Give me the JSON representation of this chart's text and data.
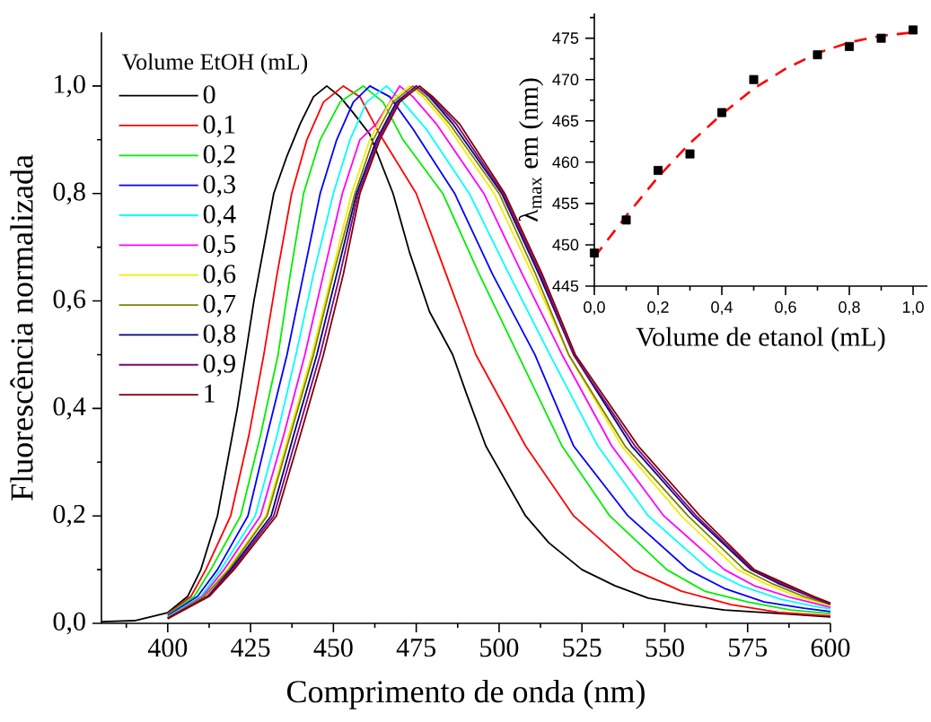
{
  "chart_data": [
    {
      "type": "line",
      "xlabel": "Comprimento de onda (nm)",
      "ylabel": "Fluorescência normalizada",
      "legend_title": "Volume EtOH (mL)",
      "legend": "top left",
      "xlim": [
        380,
        600
      ],
      "ylim": [
        0,
        1.1
      ],
      "xticks": [
        400,
        425,
        450,
        475,
        500,
        525,
        550,
        575,
        600,
        {
          "value": 387.5,
          "label": null
        },
        {
          "value": 412.5,
          "label": null
        },
        {
          "value": 437.5,
          "label": null
        },
        {
          "value": 462.5,
          "label": null
        },
        {
          "value": 487.5,
          "label": null
        },
        {
          "value": 512.5,
          "label": null
        },
        {
          "value": 537.5,
          "label": null
        },
        {
          "value": 562.5,
          "label": null
        },
        {
          "value": 587.5,
          "label": null
        }
      ],
      "yticks": [
        {
          "value": 0,
          "label": "0,0"
        },
        {
          "value": 0.2,
          "label": "0,2"
        },
        {
          "value": 0.4,
          "label": "0,4"
        },
        {
          "value": 0.6,
          "label": "0,6"
        },
        {
          "value": 0.8,
          "label": "0,8"
        },
        {
          "value": 1.0,
          "label": "1,0"
        },
        {
          "value": 0.1,
          "label": null
        },
        {
          "value": 0.3,
          "label": null
        },
        {
          "value": 0.5,
          "label": null
        },
        {
          "value": 0.7,
          "label": null
        },
        {
          "value": 0.9,
          "label": null
        }
      ],
      "series": [
        {
          "name": "0",
          "color": "#000000",
          "x": [
            380,
            390,
            400,
            406,
            410,
            415,
            421,
            426,
            432,
            436,
            440,
            444,
            448,
            452,
            456,
            461,
            468,
            473,
            479,
            486,
            490,
            496,
            508,
            515,
            525,
            535,
            545,
            556,
            568,
            585,
            600
          ],
          "values": [
            0.003,
            0.005,
            0.02,
            0.05,
            0.1,
            0.2,
            0.4,
            0.6,
            0.8,
            0.87,
            0.93,
            0.98,
            1.0,
            0.98,
            0.95,
            0.91,
            0.8,
            0.69,
            0.58,
            0.5,
            0.43,
            0.33,
            0.2,
            0.15,
            0.1,
            0.07,
            0.047,
            0.035,
            0.025,
            0.018,
            0.012
          ]
        },
        {
          "name": "0,1",
          "color": "#ff0000",
          "x": [
            400,
            407,
            411.5,
            419,
            424.5,
            429,
            433,
            437.4,
            442,
            447,
            453,
            458,
            464,
            475,
            484,
            493,
            508,
            522.5,
            540.7,
            555,
            570,
            585,
            600
          ],
          "values": [
            0.018,
            0.05,
            0.1,
            0.2,
            0.35,
            0.5,
            0.65,
            0.8,
            0.9,
            0.97,
            1.0,
            0.98,
            0.91,
            0.8,
            0.65,
            0.5,
            0.33,
            0.2,
            0.1,
            0.06,
            0.035,
            0.02,
            0.014
          ]
        },
        {
          "name": "0,2",
          "color": "#00ee00",
          "x": [
            400,
            408,
            413,
            422,
            428,
            433.3,
            437,
            441,
            446,
            452,
            459,
            465,
            471,
            483,
            494,
            505.7,
            519,
            533.4,
            550.6,
            562,
            575,
            588,
            600
          ],
          "values": [
            0.016,
            0.05,
            0.1,
            0.2,
            0.35,
            0.5,
            0.65,
            0.8,
            0.9,
            0.97,
            1.0,
            0.97,
            0.9,
            0.8,
            0.65,
            0.5,
            0.33,
            0.2,
            0.1,
            0.06,
            0.04,
            0.025,
            0.018
          ]
        },
        {
          "name": "0,3",
          "color": "#0000ff",
          "x": [
            400,
            409,
            415,
            424.2,
            430,
            436,
            441,
            446,
            451,
            456,
            461,
            467,
            474,
            486.6,
            498,
            510.8,
            522.5,
            538.9,
            557,
            568,
            580,
            592,
            600
          ],
          "values": [
            0.014,
            0.05,
            0.1,
            0.2,
            0.35,
            0.5,
            0.65,
            0.8,
            0.9,
            0.97,
            1.0,
            0.98,
            0.92,
            0.8,
            0.65,
            0.5,
            0.33,
            0.2,
            0.1,
            0.065,
            0.04,
            0.028,
            0.022
          ]
        },
        {
          "name": "0,4",
          "color": "#00ffff",
          "x": [
            400,
            410,
            416,
            426.4,
            433,
            438.7,
            444,
            450,
            455,
            460,
            466,
            471,
            478,
            491,
            503,
            515.3,
            529.8,
            545,
            563.3,
            573,
            585,
            595,
            600
          ],
          "values": [
            0.012,
            0.05,
            0.1,
            0.2,
            0.35,
            0.5,
            0.65,
            0.8,
            0.9,
            0.97,
            1.0,
            0.97,
            0.92,
            0.8,
            0.65,
            0.5,
            0.33,
            0.2,
            0.1,
            0.07,
            0.045,
            0.032,
            0.027
          ]
        },
        {
          "name": "0,5",
          "color": "#ff00ff",
          "x": [
            400,
            410.5,
            417,
            428,
            435,
            441.4,
            447,
            452.7,
            458,
            463,
            466,
            470,
            474,
            481,
            495.4,
            507,
            519,
            534,
            549.7,
            568,
            577,
            588,
            600
          ],
          "values": [
            0.011,
            0.05,
            0.1,
            0.2,
            0.35,
            0.5,
            0.65,
            0.8,
            0.9,
            0.93,
            0.96,
            1.0,
            0.98,
            0.93,
            0.8,
            0.65,
            0.5,
            0.33,
            0.2,
            0.1,
            0.07,
            0.048,
            0.03
          ]
        },
        {
          "name": "0,6",
          "color": "#eeee00",
          "x": [
            400,
            411,
            418,
            429.6,
            436.5,
            443.5,
            449.5,
            455.5,
            461,
            467,
            473,
            477,
            484,
            498.5,
            510,
            521,
            537,
            555,
            572,
            580,
            590,
            600
          ],
          "values": [
            0.01,
            0.05,
            0.1,
            0.2,
            0.35,
            0.5,
            0.65,
            0.8,
            0.9,
            0.97,
            1.0,
            0.98,
            0.93,
            0.8,
            0.65,
            0.5,
            0.33,
            0.2,
            0.1,
            0.075,
            0.05,
            0.033
          ]
        },
        {
          "name": "0,7",
          "color": "#808000",
          "x": [
            400,
            411,
            418.5,
            430,
            437,
            444,
            450,
            456.5,
            462,
            468,
            474,
            478,
            485,
            500,
            511,
            521,
            538,
            557,
            574,
            582,
            592,
            600
          ],
          "values": [
            0.01,
            0.05,
            0.1,
            0.2,
            0.35,
            0.5,
            0.65,
            0.8,
            0.9,
            0.97,
            1.0,
            0.98,
            0.93,
            0.8,
            0.65,
            0.5,
            0.33,
            0.2,
            0.1,
            0.075,
            0.05,
            0.035
          ]
        },
        {
          "name": "0,8",
          "color": "#000080",
          "x": [
            400,
            412,
            419,
            431.2,
            438,
            445,
            451,
            457,
            463,
            469,
            475,
            479,
            486,
            500.8,
            512,
            522.5,
            540,
            558.7,
            576,
            584,
            594,
            600
          ],
          "values": [
            0.009,
            0.05,
            0.1,
            0.2,
            0.35,
            0.5,
            0.65,
            0.8,
            0.9,
            0.97,
            1.0,
            0.98,
            0.93,
            0.8,
            0.65,
            0.5,
            0.33,
            0.2,
            0.1,
            0.075,
            0.05,
            0.036
          ]
        },
        {
          "name": "0,9",
          "color": "#800080",
          "x": [
            400,
            412,
            419.5,
            432,
            439,
            446,
            452,
            457.5,
            463.5,
            469.5,
            475,
            479.5,
            487,
            501.2,
            512.5,
            522.5,
            541,
            559.5,
            576.5,
            585,
            594,
            600
          ],
          "values": [
            0.009,
            0.05,
            0.1,
            0.2,
            0.35,
            0.5,
            0.65,
            0.8,
            0.9,
            0.97,
            1.0,
            0.98,
            0.93,
            0.8,
            0.65,
            0.5,
            0.33,
            0.2,
            0.1,
            0.075,
            0.05,
            0.037
          ]
        },
        {
          "name": "1",
          "color": "#800000",
          "x": [
            400,
            412.5,
            420,
            432.8,
            440,
            447,
            453,
            458,
            464,
            470,
            476,
            480,
            488,
            501.7,
            513,
            523,
            542,
            560.6,
            577,
            586,
            595,
            600
          ],
          "values": [
            0.009,
            0.05,
            0.1,
            0.2,
            0.35,
            0.5,
            0.65,
            0.8,
            0.9,
            0.97,
            1.0,
            0.98,
            0.93,
            0.8,
            0.65,
            0.5,
            0.33,
            0.2,
            0.1,
            0.075,
            0.05,
            0.038
          ]
        }
      ]
    },
    {
      "type": "scatter",
      "xlabel": "Volume de etanol (mL)",
      "ylabel": "λ$_{max}$ em (nm)",
      "xlim": [
        0,
        1.045
      ],
      "ylim": [
        445,
        478
      ],
      "xticks": [
        {
          "value": 0,
          "label": "0,0"
        },
        {
          "value": 0.2,
          "label": "0,2"
        },
        {
          "value": 0.4,
          "label": "0,4"
        },
        {
          "value": 0.6,
          "label": "0,6"
        },
        {
          "value": 0.8,
          "label": "0,8"
        },
        {
          "value": 1.0,
          "label": "1,0"
        },
        {
          "value": 0.1,
          "label": null
        },
        {
          "value": 0.3,
          "label": null
        },
        {
          "value": 0.5,
          "label": null
        },
        {
          "value": 0.7,
          "label": null
        },
        {
          "value": 0.9,
          "label": null
        }
      ],
      "yticks": [
        445,
        450,
        455,
        460,
        465,
        470,
        475,
        {
          "value": 447.5,
          "label": null
        },
        {
          "value": 452.5,
          "label": null
        },
        {
          "value": 457.5,
          "label": null
        },
        {
          "value": 462.5,
          "label": null
        },
        {
          "value": 467.5,
          "label": null
        },
        {
          "value": 472.5,
          "label": null
        },
        {
          "value": 477.5,
          "label": null
        }
      ],
      "series": [
        {
          "type": "line",
          "color": "#ff0000",
          "line_style": "dashed",
          "x": [
            0,
            0.1,
            0.2,
            0.3,
            0.4,
            0.5,
            0.6,
            0.7,
            0.8,
            0.9,
            1.0
          ],
          "values": [
            448.5,
            453.5,
            458.2,
            462.3,
            465.8,
            468.9,
            471.3,
            473.2,
            474.5,
            475.3,
            475.7
          ]
        },
        {
          "type": "scatter",
          "color": "#000000",
          "marker": "square",
          "x": [
            0,
            0.1,
            0.2,
            0.3,
            0.4,
            0.5,
            0.7,
            0.8,
            0.9,
            1.0
          ],
          "values": [
            449,
            453,
            459,
            461,
            466,
            470,
            473,
            474,
            475,
            476
          ]
        }
      ]
    }
  ]
}
